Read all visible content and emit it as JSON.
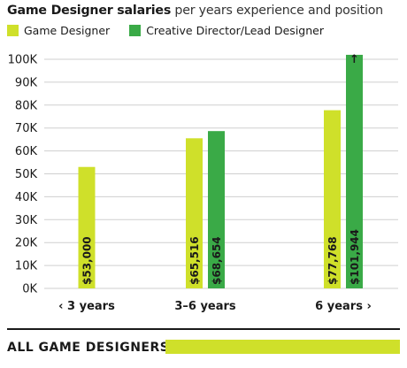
{
  "title": {
    "bold": "Game Designer salaries",
    "rest": "per years experience and position"
  },
  "colors": {
    "game_designer": "#cfe02a",
    "creative_director": "#3aaa47",
    "grid": "#cfcfcf",
    "text": "#1a1a1a"
  },
  "chart_data": {
    "type": "bar",
    "title": "Game Designer salaries per years experience and position",
    "xlabel": "",
    "ylabel": "",
    "ylim": [
      0,
      100000
    ],
    "yticks": [
      "0K",
      "10K",
      "20K",
      "30K",
      "40K",
      "50K",
      "60K",
      "70K",
      "80K",
      "90K",
      "100K"
    ],
    "grid": true,
    "legend_position": "top-left",
    "categories": [
      "‹ 3 years",
      "3–6 years",
      "6 years ›"
    ],
    "series": [
      {
        "name": "Game Designer",
        "color": "#cfe02a",
        "values": [
          53000,
          65516,
          77768
        ],
        "labels": [
          "$53,000",
          "$65,516",
          "$77,768"
        ]
      },
      {
        "name": "Creative Director/Lead Designer",
        "color": "#3aaa47",
        "values": [
          null,
          68654,
          101944
        ],
        "labels": [
          null,
          "$68,654",
          "$101,944"
        ]
      }
    ],
    "annotations": [
      "↑"
    ]
  },
  "footer": {
    "label": "ALL GAME DESIGNERS",
    "bar_color": "#cfe02a"
  }
}
